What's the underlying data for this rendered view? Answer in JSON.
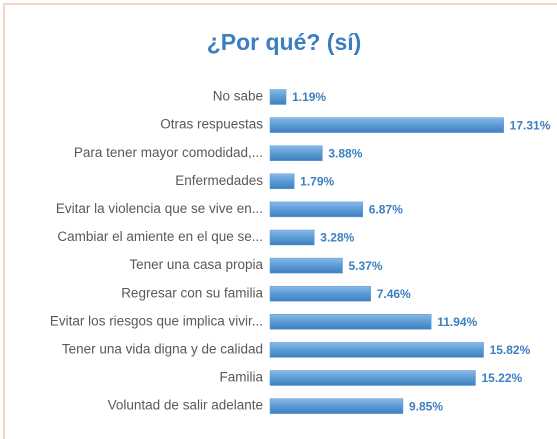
{
  "chart_data": {
    "type": "bar",
    "orientation": "horizontal",
    "title": "¿Por qué? (sí)",
    "categories": [
      "No sabe",
      "Otras respuestas",
      "Para tener mayor comodidad,...",
      "Enfermedades",
      "Evitar la violencia que se vive en...",
      "Cambiar el amiente en el que se...",
      "Tener una casa propia",
      "Regresar con su familia",
      "Evitar los riesgos que implica vivir...",
      "Tener una vida digna y de calidad",
      "Familia",
      "Voluntad de salir adelante"
    ],
    "values": [
      1.19,
      17.31,
      3.88,
      1.79,
      6.87,
      3.28,
      5.37,
      7.46,
      11.94,
      15.82,
      15.22,
      9.85
    ],
    "value_labels": [
      "1.19%",
      "17.31%",
      "3.88%",
      "1.79%",
      "6.87%",
      "3.28%",
      "5.37%",
      "7.46%",
      "11.94%",
      "15.82%",
      "15.22%",
      "9.85%"
    ],
    "color": "#5b9bd5"
  }
}
